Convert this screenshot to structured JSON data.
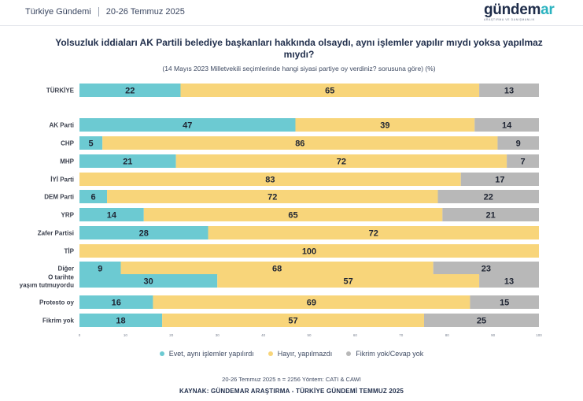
{
  "header": {
    "section": "Türkiye Gündemi",
    "dates": "20-26 Temmuz 2025",
    "logo_main": "gündem",
    "logo_accent": "ar",
    "logo_sub": "ARAŞTIRMA VE DANIŞMANLIK"
  },
  "colors": {
    "yes": "#6ccad2",
    "no": "#f8d57a",
    "undecided": "#b8b8b8",
    "label_text": "#3a3f4c"
  },
  "chart_data": {
    "type": "bar",
    "orientation": "horizontal",
    "stacked": true,
    "title": "Yolsuzluk iddiaları AK Partili belediye başkanları hakkında olsaydı, aynı işlemler yapılır mıydı yoksa yapılmaz mıydı?",
    "subtitle": "(14 Mayıs 2023 Milletvekili seçimlerinde hangi siyasi partiye oy verdiniz? sorusuna göre) (%)",
    "xlim": [
      0,
      100
    ],
    "xticks": [
      "0",
      "10",
      "20",
      "30",
      "40",
      "50",
      "60",
      "70",
      "80",
      "90",
      "100"
    ],
    "categories": [
      "TÜRKİYE",
      "AK Parti",
      "CHP",
      "MHP",
      "İYİ Parti",
      "DEM Parti",
      "YRP",
      "Zafer Partisi",
      "TİP",
      "Diğer",
      "O tarihte yaşım tutmuyordu",
      "Protesto oy",
      "Fikrim yok"
    ],
    "series": [
      {
        "name": "Evet, aynı işlemler yapılırdı",
        "values": [
          22,
          47,
          5,
          21,
          0,
          6,
          14,
          28,
          0,
          9,
          30,
          16,
          18
        ]
      },
      {
        "name": "Hayır, yapılmazdı",
        "values": [
          65,
          39,
          86,
          72,
          83,
          72,
          65,
          72,
          100,
          68,
          57,
          69,
          57
        ]
      },
      {
        "name": "Fikrim yok/Cevap yok",
        "values": [
          13,
          14,
          9,
          7,
          17,
          22,
          21,
          0,
          0,
          23,
          13,
          15,
          25
        ]
      }
    ]
  },
  "footer": {
    "meta": "20-26 Temmuz 2025 n = 2256 Yöntem: CATI & CAWI",
    "source": "KAYNAK: GÜNDEMAR ARAŞTIRMA - TÜRKİYE GÜNDEMİ TEMMUZ 2025"
  }
}
